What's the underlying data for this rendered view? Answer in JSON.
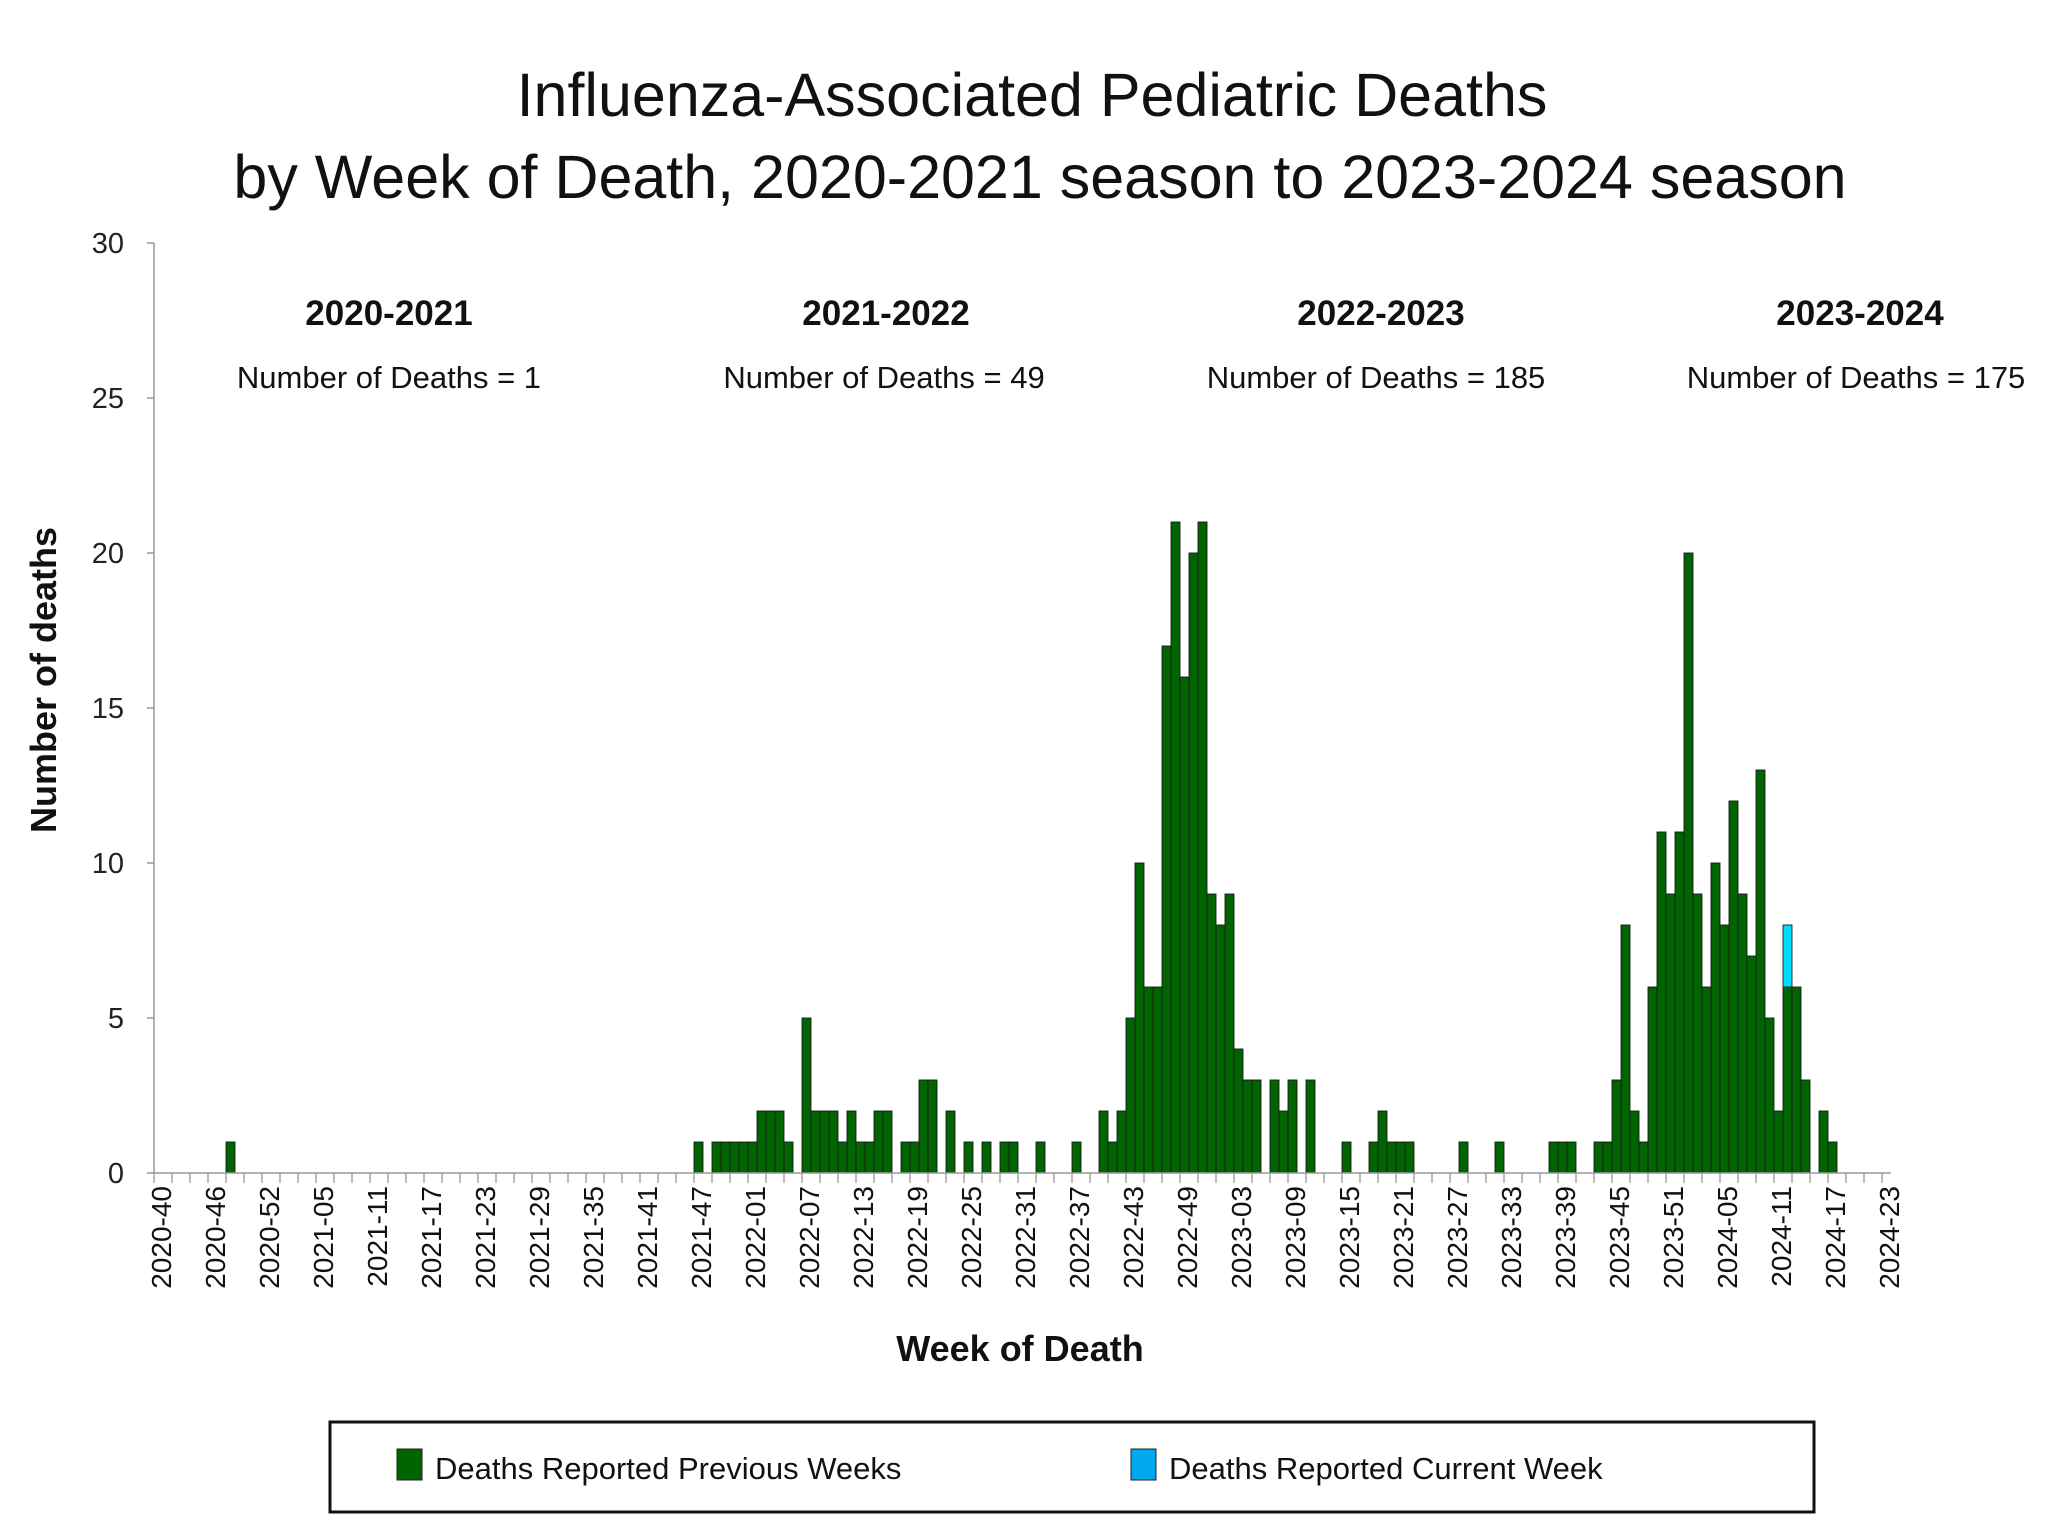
{
  "chart_data": {
    "type": "bar",
    "title": [
      "Influenza-Associated Pediatric Deaths",
      "by Week of Death, 2020-2021 season to 2023-2024 season"
    ],
    "xlabel": "Week of Death",
    "ylabel": "Number of deaths",
    "ylim": [
      0,
      30
    ],
    "yticks": [
      "0",
      "5",
      "10",
      "15",
      "20",
      "25",
      "30"
    ],
    "x_range": [
      "2020-40",
      "2024-23"
    ],
    "xticks": [
      "2020-40",
      "2020-46",
      "2020-52",
      "2021-05",
      "2021-11",
      "2021-17",
      "2021-23",
      "2021-29",
      "2021-35",
      "2021-41",
      "2021-47",
      "2022-01",
      "2022-07",
      "2022-13",
      "2022-19",
      "2022-25",
      "2022-31",
      "2022-37",
      "2022-43",
      "2022-49",
      "2023-03",
      "2023-09",
      "2023-15",
      "2023-21",
      "2023-27",
      "2023-33",
      "2023-39",
      "2023-45",
      "2023-51",
      "2024-05",
      "2024-11",
      "2024-17",
      "2024-23"
    ],
    "stacked": true,
    "grid": false,
    "legend_position": "bottom",
    "series": [
      {
        "name": "Deaths Reported Previous Weeks",
        "color": "#006400",
        "points": [
          [
            "2020-48",
            1
          ],
          [
            "2021-47",
            1
          ],
          [
            "2021-49",
            1
          ],
          [
            "2021-50",
            1
          ],
          [
            "2021-51",
            1
          ],
          [
            "2021-52",
            1
          ],
          [
            "2022-01",
            1
          ],
          [
            "2022-02",
            2
          ],
          [
            "2022-03",
            2
          ],
          [
            "2022-04",
            2
          ],
          [
            "2022-05",
            1
          ],
          [
            "2022-07",
            5
          ],
          [
            "2022-08",
            2
          ],
          [
            "2022-09",
            2
          ],
          [
            "2022-10",
            2
          ],
          [
            "2022-11",
            1
          ],
          [
            "2022-12",
            2
          ],
          [
            "2022-13",
            1
          ],
          [
            "2022-14",
            1
          ],
          [
            "2022-15",
            2
          ],
          [
            "2022-16",
            2
          ],
          [
            "2022-18",
            1
          ],
          [
            "2022-19",
            1
          ],
          [
            "2022-20",
            3
          ],
          [
            "2022-21",
            3
          ],
          [
            "2022-23",
            2
          ],
          [
            "2022-25",
            1
          ],
          [
            "2022-27",
            1
          ],
          [
            "2022-29",
            1
          ],
          [
            "2022-30",
            1
          ],
          [
            "2022-33",
            1
          ],
          [
            "2022-37",
            1
          ],
          [
            "2022-40",
            2
          ],
          [
            "2022-41",
            1
          ],
          [
            "2022-42",
            2
          ],
          [
            "2022-43",
            5
          ],
          [
            "2022-44",
            10
          ],
          [
            "2022-45",
            6
          ],
          [
            "2022-46",
            6
          ],
          [
            "2022-47",
            17
          ],
          [
            "2022-48",
            21
          ],
          [
            "2022-49",
            16
          ],
          [
            "2022-50",
            20
          ],
          [
            "2022-51",
            21
          ],
          [
            "2022-52",
            9
          ],
          [
            "2023-01",
            8
          ],
          [
            "2023-02",
            9
          ],
          [
            "2023-03",
            4
          ],
          [
            "2023-04",
            3
          ],
          [
            "2023-05",
            3
          ],
          [
            "2023-07",
            3
          ],
          [
            "2023-08",
            2
          ],
          [
            "2023-09",
            3
          ],
          [
            "2023-11",
            3
          ],
          [
            "2023-15",
            1
          ],
          [
            "2023-18",
            1
          ],
          [
            "2023-19",
            2
          ],
          [
            "2023-20",
            1
          ],
          [
            "2023-21",
            1
          ],
          [
            "2023-22",
            1
          ],
          [
            "2023-28",
            1
          ],
          [
            "2023-32",
            1
          ],
          [
            "2023-38",
            1
          ],
          [
            "2023-39",
            1
          ],
          [
            "2023-40",
            1
          ],
          [
            "2023-43",
            1
          ],
          [
            "2023-44",
            1
          ],
          [
            "2023-45",
            3
          ],
          [
            "2023-46",
            8
          ],
          [
            "2023-47",
            2
          ],
          [
            "2023-48",
            1
          ],
          [
            "2023-49",
            6
          ],
          [
            "2023-50",
            11
          ],
          [
            "2023-51",
            9
          ],
          [
            "2023-52",
            11
          ],
          [
            "2024-01",
            20
          ],
          [
            "2024-02",
            9
          ],
          [
            "2024-03",
            6
          ],
          [
            "2024-04",
            10
          ],
          [
            "2024-05",
            8
          ],
          [
            "2024-06",
            12
          ],
          [
            "2024-07",
            9
          ],
          [
            "2024-08",
            7
          ],
          [
            "2024-09",
            13
          ],
          [
            "2024-10",
            5
          ],
          [
            "2024-11",
            2
          ],
          [
            "2024-12",
            6
          ],
          [
            "2024-13",
            6
          ],
          [
            "2024-14",
            3
          ],
          [
            "2024-16",
            2
          ],
          [
            "2024-17",
            1
          ]
        ]
      },
      {
        "name": "Deaths Reported Current Week",
        "color": "#00DDFF",
        "legend_color": "#00A8F0",
        "points": [
          [
            "2024-12",
            2
          ]
        ]
      }
    ],
    "annotations": [
      {
        "season": "2020-2021",
        "text": "Number of Deaths = 1"
      },
      {
        "season": "2021-2022",
        "text": "Number of Deaths = 49"
      },
      {
        "season": "2022-2023",
        "text": "Number of Deaths = 185"
      },
      {
        "season": "2023-2024",
        "text": "Number of Deaths = 175"
      }
    ]
  }
}
